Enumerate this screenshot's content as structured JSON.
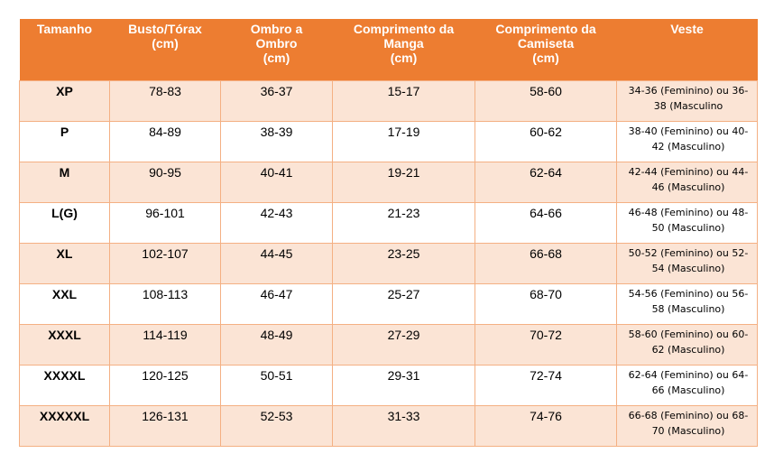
{
  "table": {
    "headers": [
      "Tamanho",
      "Busto/Tórax\n(cm)",
      "Ombro a\nOmbro\n(cm)",
      "Comprimento da\nManga\n(cm)",
      "Comprimento da\nCamiseta\n(cm)",
      "Veste"
    ],
    "rows": [
      [
        "XP",
        "78-83",
        "36-37",
        "15-17",
        "58-60",
        "34-36 (Feminino) ou 36-38 (Masculino"
      ],
      [
        "P",
        "84-89",
        "38-39",
        "17-19",
        "60-62",
        "38-40 (Feminino) ou 40-42 (Masculino)"
      ],
      [
        "M",
        "90-95",
        "40-41",
        "19-21",
        "62-64",
        "42-44 (Feminino) ou 44-46 (Masculino)"
      ],
      [
        "L(G)",
        "96-101",
        "42-43",
        "21-23",
        "64-66",
        "46-48 (Feminino) ou 48-50 (Masculino)"
      ],
      [
        "XL",
        "102-107",
        "44-45",
        "23-25",
        "66-68",
        "50-52 (Feminino) ou 52-54 (Masculino)"
      ],
      [
        "XXL",
        "108-113",
        "46-47",
        "25-27",
        "68-70",
        "54-56 (Feminino) ou 56-58 (Masculino)"
      ],
      [
        "XXXL",
        "114-119",
        "48-49",
        "27-29",
        "70-72",
        "58-60 (Feminino) ou 60-62 (Masculino)"
      ],
      [
        "XXXXL",
        "120-125",
        "50-51",
        "29-31",
        "72-74",
        "62-64 (Feminino) ou 64-66 (Masculino)"
      ],
      [
        "XXXXXL",
        "126-131",
        "52-53",
        "31-33",
        "74-76",
        "66-68 (Feminino) ou 68-70 (Masculino)"
      ]
    ]
  },
  "colors": {
    "header_bg": "#ED7D31",
    "header_text": "#FFFFFF",
    "band_light": "#FBE4D5",
    "band_white": "#FFFFFF",
    "border": "#F4B083"
  }
}
